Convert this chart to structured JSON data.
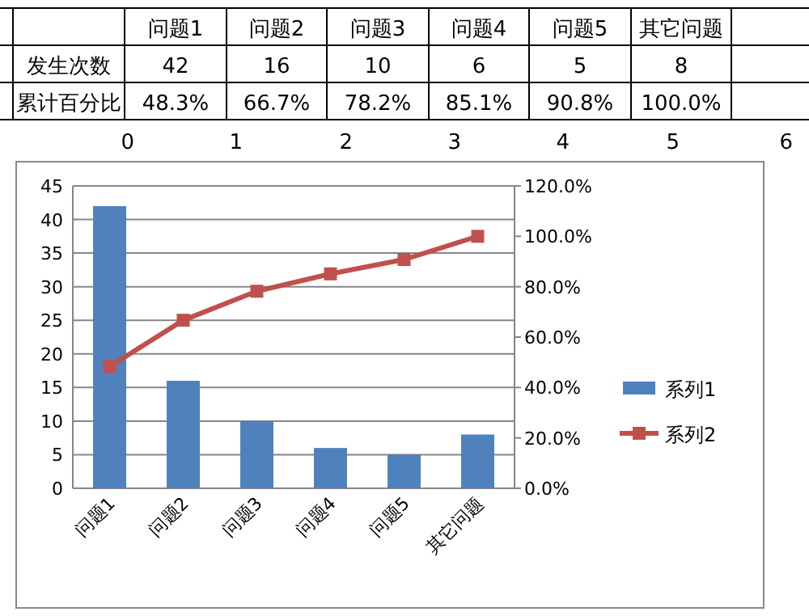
{
  "chart_data": {
    "type": "bar",
    "categories": [
      "问题1",
      "问题2",
      "问题3",
      "问题4",
      "问题5",
      "其它问题"
    ],
    "series": [
      {
        "name": "系列1",
        "color": "#4f81bd",
        "values": [
          42,
          16,
          10,
          6,
          5,
          8
        ]
      },
      {
        "name": "系列2",
        "type": "line",
        "axis": "y2",
        "color": "#c0504d",
        "marker": "square",
        "values": [
          48.3,
          66.7,
          78.2,
          85.1,
          90.8,
          100.0
        ]
      }
    ],
    "ylim": [
      0,
      45
    ],
    "yticks": [
      0,
      5,
      10,
      15,
      20,
      25,
      30,
      35,
      40,
      45
    ],
    "y2lim": [
      0,
      120
    ],
    "y2ticks": [
      {
        "value": 0,
        "label": "0.0%"
      },
      {
        "value": 20,
        "label": "20.0%"
      },
      {
        "value": 40,
        "label": "40.0%"
      },
      {
        "value": 60,
        "label": "60.0%"
      },
      {
        "value": 80,
        "label": "80.0%"
      },
      {
        "value": 100,
        "label": "100.0%"
      },
      {
        "value": 120,
        "label": "120.0%"
      }
    ],
    "grid": "y",
    "legend": "right",
    "annotations": [
      "发生次数",
      "累计百分比",
      "42",
      "16",
      "10",
      "6",
      "5",
      "8",
      "48.3%",
      "66.7%",
      "78.2%",
      "85.1%",
      "90.8%",
      "100.0%",
      "0",
      "1",
      "2",
      "3",
      "4",
      "5",
      "6"
    ]
  }
}
